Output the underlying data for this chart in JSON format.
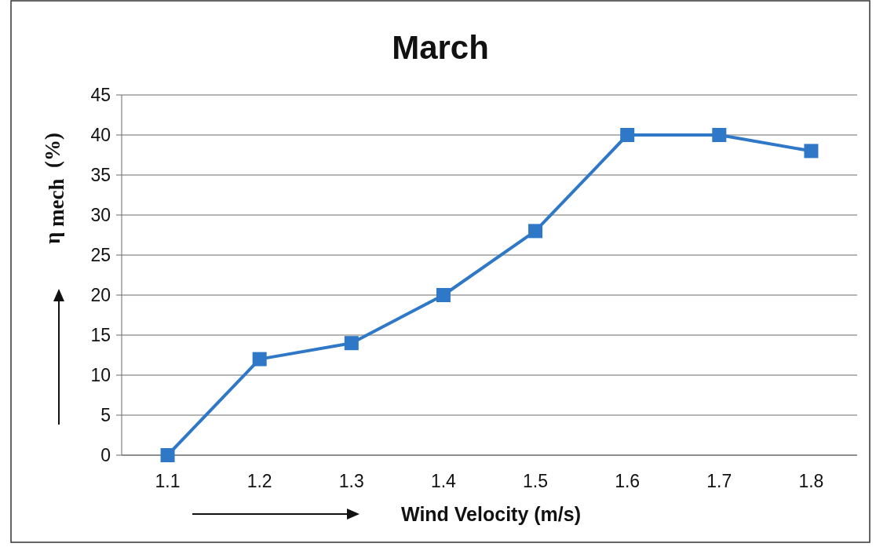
{
  "chart_data": {
    "type": "line",
    "title": "March",
    "xlabel": "Wind Velocity (m/s)",
    "ylabel": "η $_{mech}$  (%)",
    "categories": [
      "1.1",
      "1.2",
      "1.3",
      "1.4",
      "1.5",
      "1.6",
      "1.7",
      "1.8"
    ],
    "series": [
      {
        "color": "#2f78c8",
        "values": [
          0,
          12,
          14,
          20,
          28,
          40,
          40,
          38
        ]
      }
    ],
    "ylim": [
      0,
      45
    ],
    "yticks": [
      0,
      5,
      10,
      15,
      20,
      25,
      30,
      35,
      40,
      45
    ],
    "grid": "y",
    "marker": "square",
    "line_style": "solid"
  }
}
